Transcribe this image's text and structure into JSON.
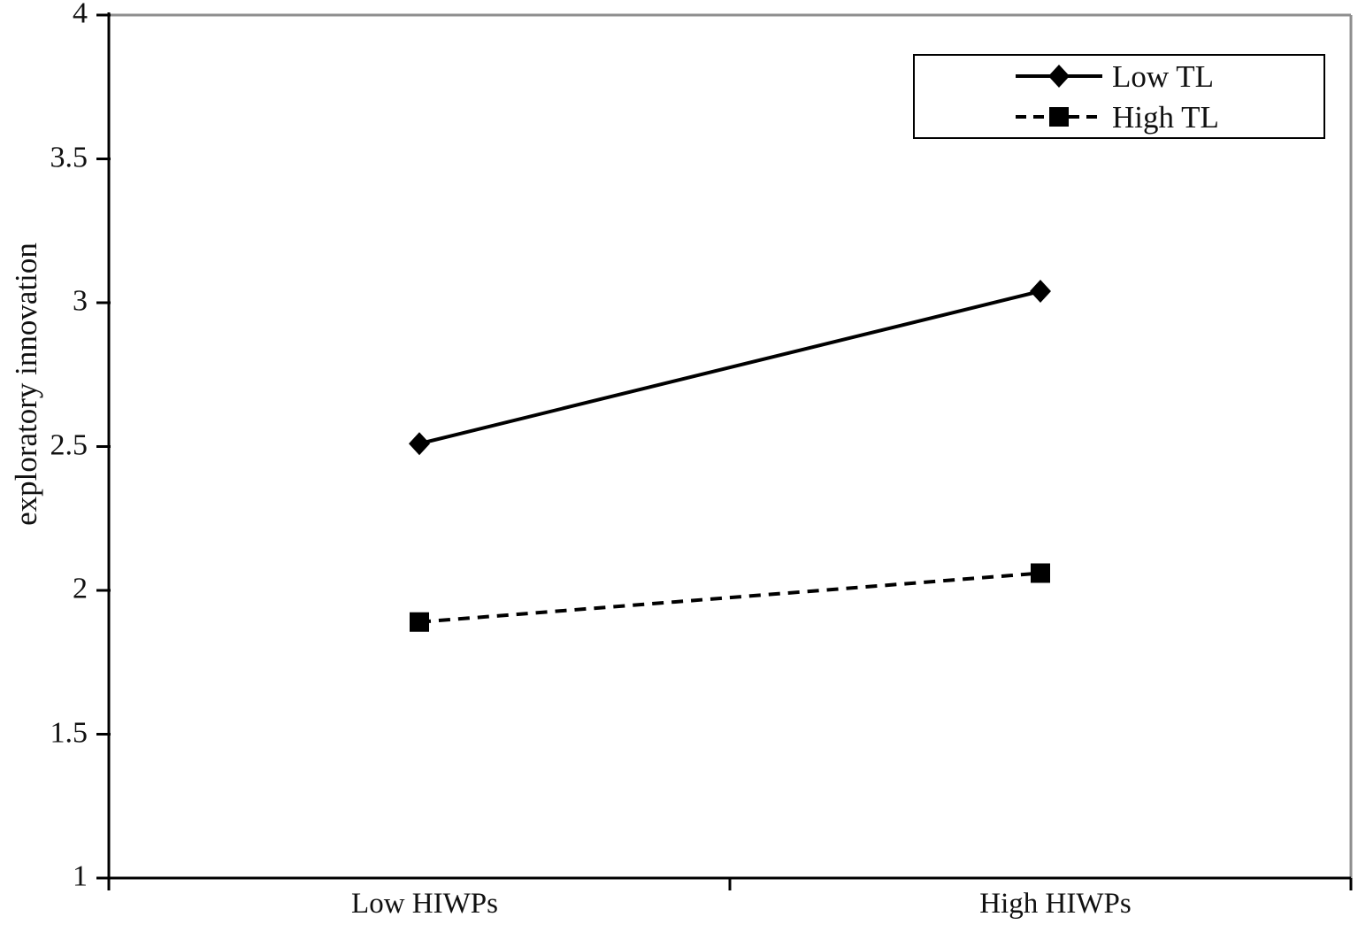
{
  "chart_data": {
    "type": "line",
    "title": "",
    "xlabel": "",
    "ylabel": "exploratory innovation",
    "categories": [
      "Low HIWPs",
      "High HIWPs"
    ],
    "series": [
      {
        "name": "Low TL",
        "values": [
          2.51,
          3.04
        ],
        "line_style": "solid",
        "marker": "diamond",
        "color": "#000000"
      },
      {
        "name": "High TL",
        "values": [
          1.89,
          2.06
        ],
        "line_style": "dashed",
        "marker": "square",
        "color": "#000000"
      }
    ],
    "ylim": [
      1,
      4
    ],
    "yticks": [
      1,
      1.5,
      2,
      2.5,
      3,
      3.5,
      4
    ],
    "grid": false,
    "legend_position": "top-right",
    "colors": {
      "line": "#000000",
      "axis": "#000000",
      "text": "#111111",
      "frame_gray": "#8e8e8e",
      "background": "#ffffff"
    }
  }
}
